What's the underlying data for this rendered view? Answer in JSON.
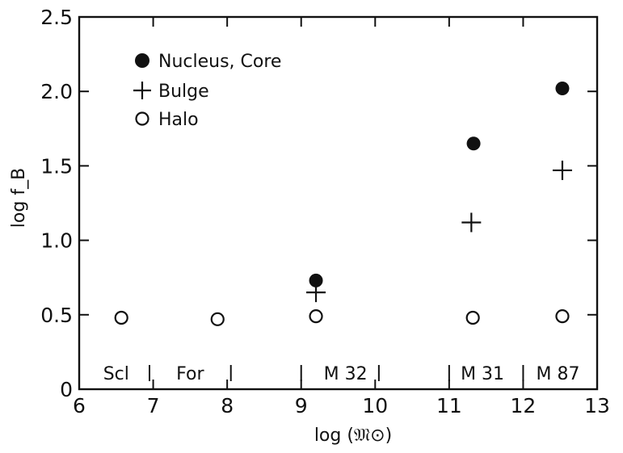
{
  "chart_data": {
    "type": "scatter",
    "xlabel": "log (𝔐⊙)",
    "ylabel": "log f_B",
    "xlim": [
      6,
      13
    ],
    "ylim": [
      0,
      2.5
    ],
    "x_ticks": [
      6,
      7,
      8,
      9,
      10,
      11,
      12,
      13
    ],
    "y_ticks": [
      0,
      0.5,
      1.0,
      1.5,
      2.0,
      2.5
    ],
    "x_tick_labels": [
      "6",
      "7",
      "8",
      "9",
      "10",
      "11",
      "12",
      "13"
    ],
    "y_tick_labels": [
      "0",
      "0.5",
      "1.0",
      "1.5",
      "2.0",
      "2.5"
    ],
    "grid": false,
    "legend_position": "top-left",
    "series": [
      {
        "name": "Nucleus, Core",
        "marker": "filled-circle",
        "points": [
          {
            "x": 9.2,
            "y": 0.73
          },
          {
            "x": 11.33,
            "y": 1.65
          },
          {
            "x": 12.53,
            "y": 2.02
          }
        ]
      },
      {
        "name": "Bulge",
        "marker": "plus",
        "points": [
          {
            "x": 9.2,
            "y": 0.65
          },
          {
            "x": 11.3,
            "y": 1.12
          },
          {
            "x": 12.53,
            "y": 1.47
          }
        ]
      },
      {
        "name": "Halo",
        "marker": "open-circle",
        "points": [
          {
            "x": 6.57,
            "y": 0.48
          },
          {
            "x": 7.87,
            "y": 0.47
          },
          {
            "x": 9.2,
            "y": 0.49
          },
          {
            "x": 11.32,
            "y": 0.48
          },
          {
            "x": 12.53,
            "y": 0.49
          }
        ]
      }
    ],
    "galaxy_labels": [
      {
        "text": "Scl",
        "x": 6.5
      },
      {
        "text": "For",
        "x": 7.5
      },
      {
        "text": "M 32",
        "x": 9.6
      },
      {
        "text": "M 31",
        "x": 11.45
      },
      {
        "text": "M 87",
        "x": 12.47
      }
    ],
    "galaxy_separators_x": [
      6.95,
      8.05,
      9.0,
      10.05,
      11.0,
      12.0
    ]
  }
}
